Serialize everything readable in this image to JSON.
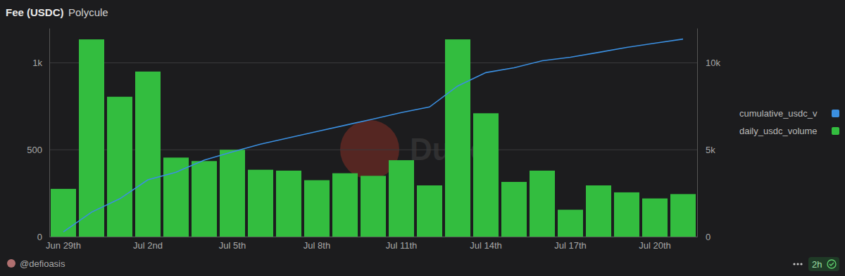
{
  "chart_data": {
    "type": "bar",
    "title": "Fee (USDC)",
    "subtitle": "Polycule",
    "annotations": [
      "Dune",
      "@defioasis",
      "2h"
    ],
    "categories": [
      "Jun 29th",
      null,
      null,
      "Jul 2nd",
      null,
      null,
      "Jul 5th",
      null,
      null,
      "Jul 8th",
      null,
      null,
      "Jul 11th",
      null,
      null,
      "Jul 14th",
      null,
      null,
      "Jul 17th",
      null,
      null,
      "Jul 20th",
      null
    ],
    "series": [
      {
        "name": "cumulative_usdc_v",
        "type": "line",
        "axis": "y2",
        "color": "#3b8fe0",
        "values": [
          280,
          1410,
          2180,
          3270,
          3710,
          4400,
          4880,
          5320,
          5690,
          6050,
          6410,
          6770,
          7140,
          7460,
          8670,
          9440,
          9720,
          10120,
          10320,
          10600,
          10890,
          11130,
          11370
        ]
      },
      {
        "name": "daily_usdc_volume",
        "type": "bar",
        "color": "#33bd3f",
        "values": [
          275,
          1135,
          805,
          950,
          455,
          435,
          500,
          385,
          380,
          325,
          365,
          350,
          440,
          295,
          1135,
          710,
          315,
          380,
          155,
          295,
          255,
          220,
          245
        ]
      }
    ],
    "ylim": [
      0,
      1200
    ],
    "yticks": [
      0,
      500,
      {
        "value": 1000,
        "label": "1k"
      }
    ],
    "y2lim": [
      0,
      12000
    ],
    "y2ticks": [
      0,
      {
        "value": 5000,
        "label": "5k"
      },
      {
        "value": 10000,
        "label": "10k"
      }
    ],
    "grid": true,
    "legend": "right"
  }
}
